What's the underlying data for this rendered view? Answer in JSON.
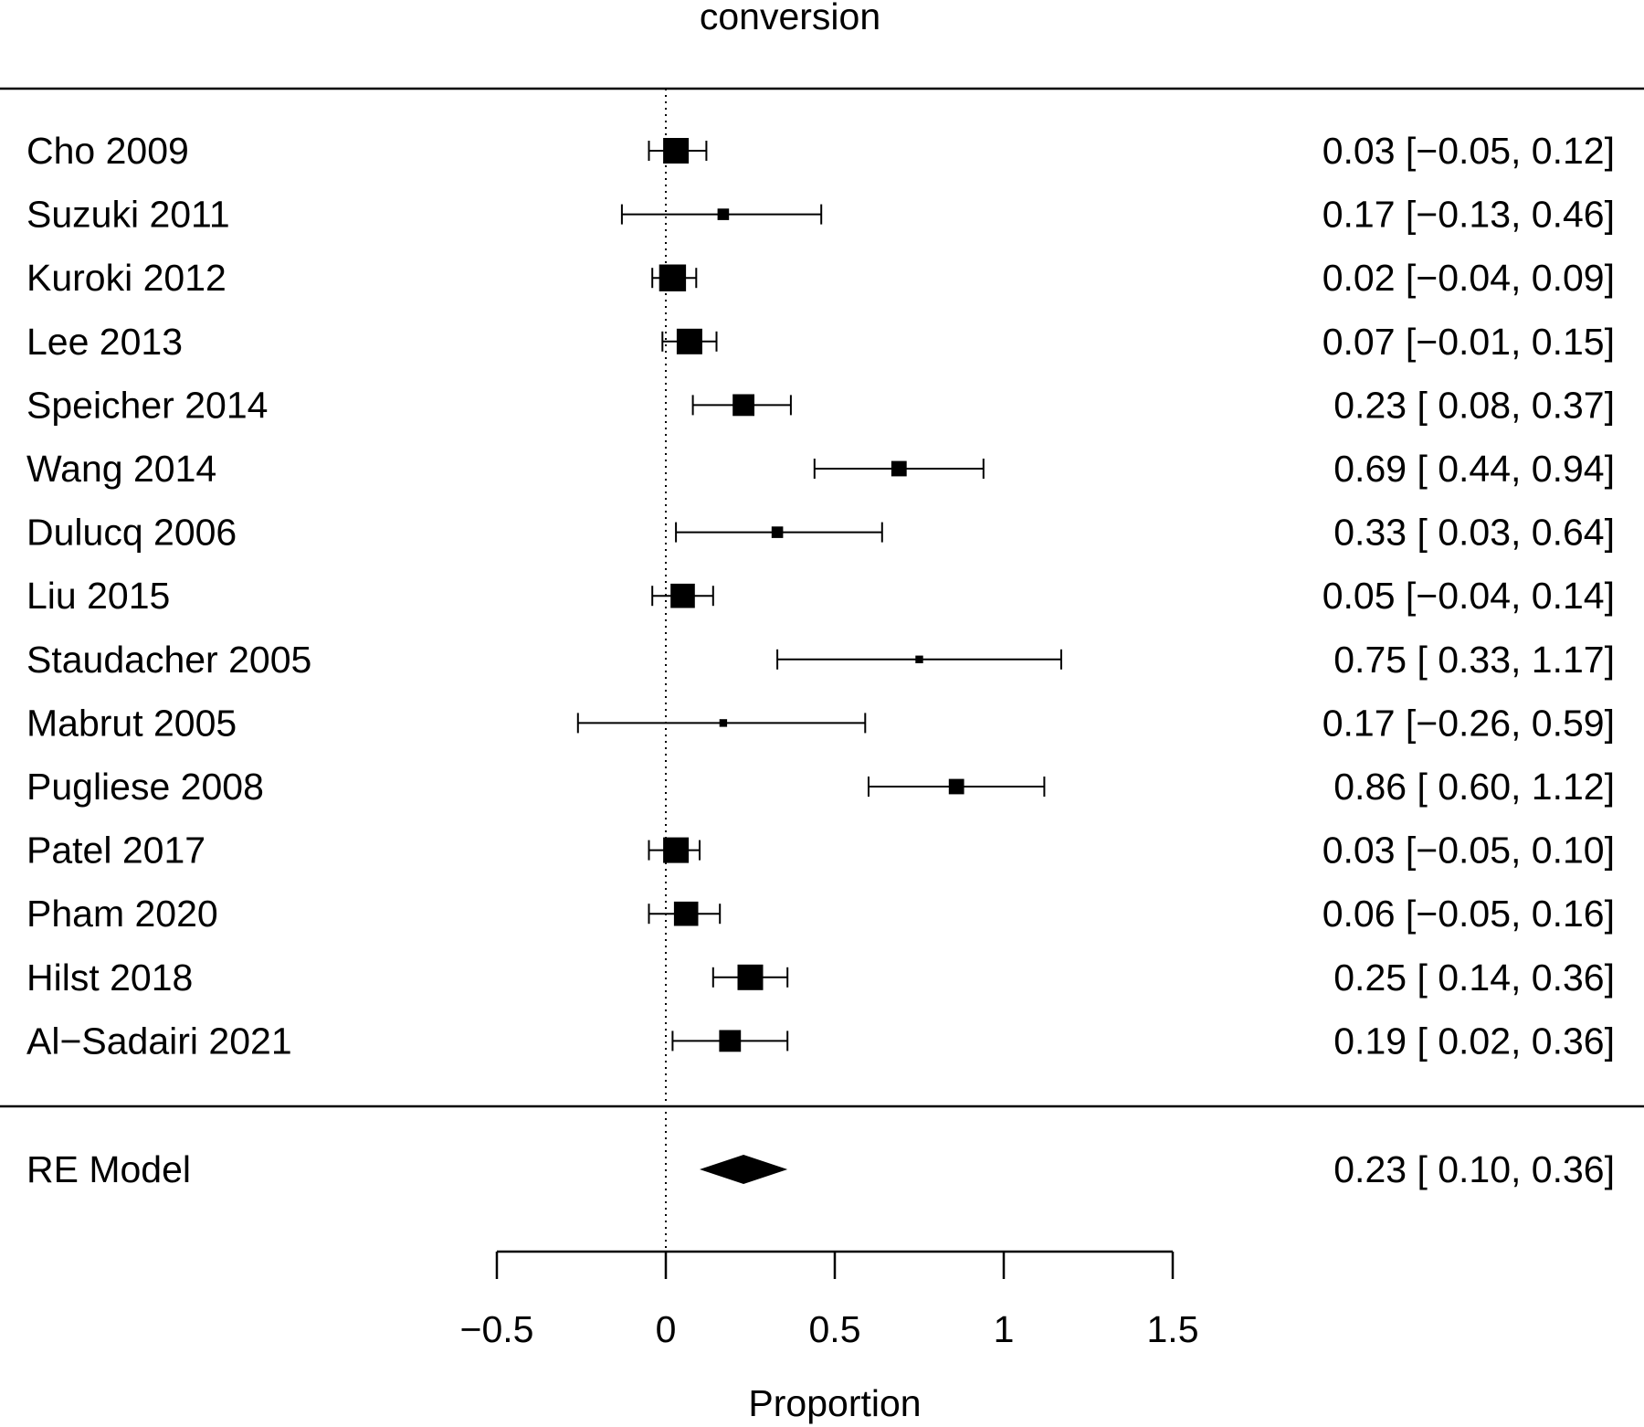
{
  "chart_data": {
    "type": "forest",
    "title": "conversion",
    "xlabel": "Proportion",
    "xlim": [
      -0.5,
      1.5
    ],
    "xticks": [
      {
        "value": -0.5,
        "label": "−0.5"
      },
      {
        "value": 0,
        "label": "0"
      },
      {
        "value": 0.5,
        "label": "0.5"
      },
      {
        "value": 1,
        "label": "1"
      },
      {
        "value": 1.5,
        "label": "1.5"
      }
    ],
    "reference_line": 0,
    "studies": [
      {
        "label": "Cho 2009",
        "estimate": 0.03,
        "lower": -0.05,
        "upper": 0.12,
        "weight": 1.0,
        "text": "0.03 [−0.05, 0.12]"
      },
      {
        "label": "Suzuki 2011",
        "estimate": 0.17,
        "lower": -0.13,
        "upper": 0.46,
        "weight": 0.45,
        "text": "0.17 [−0.13, 0.46]"
      },
      {
        "label": "Kuroki 2012",
        "estimate": 0.02,
        "lower": -0.04,
        "upper": 0.09,
        "weight": 1.05,
        "text": "0.02 [−0.04, 0.09]"
      },
      {
        "label": "Lee 2013",
        "estimate": 0.07,
        "lower": -0.01,
        "upper": 0.15,
        "weight": 1.0,
        "text": "0.07 [−0.01, 0.15]"
      },
      {
        "label": "Speicher 2014",
        "estimate": 0.23,
        "lower": 0.08,
        "upper": 0.37,
        "weight": 0.85,
        "text": "0.23 [ 0.08, 0.37]"
      },
      {
        "label": "Wang 2014",
        "estimate": 0.69,
        "lower": 0.44,
        "upper": 0.94,
        "weight": 0.6,
        "text": "0.69 [ 0.44, 0.94]"
      },
      {
        "label": "Dulucq 2006",
        "estimate": 0.33,
        "lower": 0.03,
        "upper": 0.64,
        "weight": 0.45,
        "text": "0.33 [ 0.03, 0.64]"
      },
      {
        "label": "Liu 2015",
        "estimate": 0.05,
        "lower": -0.04,
        "upper": 0.14,
        "weight": 0.95,
        "text": "0.05 [−0.04, 0.14]"
      },
      {
        "label": "Staudacher 2005",
        "estimate": 0.75,
        "lower": 0.33,
        "upper": 1.17,
        "weight": 0.3,
        "text": "0.75 [ 0.33, 1.17]"
      },
      {
        "label": "Mabrut 2005",
        "estimate": 0.17,
        "lower": -0.26,
        "upper": 0.59,
        "weight": 0.3,
        "text": "0.17 [−0.26, 0.59]"
      },
      {
        "label": "Pugliese 2008",
        "estimate": 0.86,
        "lower": 0.6,
        "upper": 1.12,
        "weight": 0.6,
        "text": "0.86 [ 0.60, 1.12]"
      },
      {
        "label": "Patel 2017",
        "estimate": 0.03,
        "lower": -0.05,
        "upper": 0.1,
        "weight": 1.0,
        "text": "0.03 [−0.05, 0.10]"
      },
      {
        "label": "Pham 2020",
        "estimate": 0.06,
        "lower": -0.05,
        "upper": 0.16,
        "weight": 0.95,
        "text": "0.06 [−0.05, 0.16]"
      },
      {
        "label": "Hilst 2018",
        "estimate": 0.25,
        "lower": 0.14,
        "upper": 0.36,
        "weight": 1.0,
        "text": "0.25 [ 0.14, 0.36]"
      },
      {
        "label": "Al−Sadairi 2021",
        "estimate": 0.19,
        "lower": 0.02,
        "upper": 0.36,
        "weight": 0.85,
        "text": "0.19 [ 0.02, 0.36]"
      }
    ],
    "summary": {
      "label": "RE Model",
      "estimate": 0.23,
      "lower": 0.1,
      "upper": 0.36,
      "text": "0.23 [ 0.10, 0.36]"
    }
  }
}
